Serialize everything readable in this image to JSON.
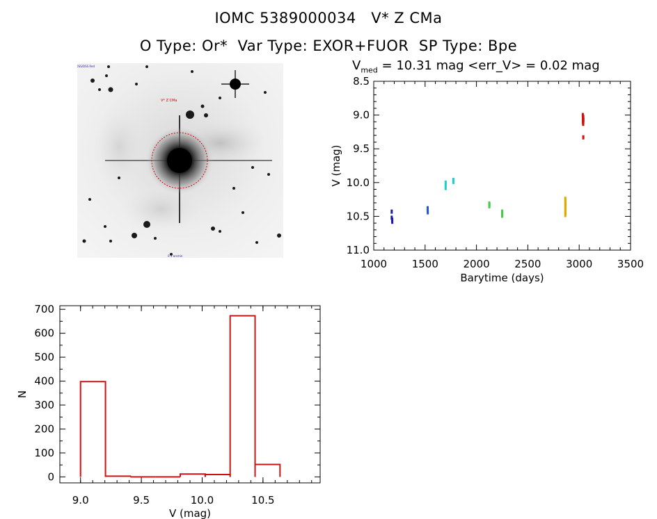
{
  "header": {
    "title_line1": "IOMC 5389000034   V* Z CMa",
    "title_line2": "O Type: Or*  Var Type: EXOR+FUOR  SP Type: Bpe"
  },
  "colors": {
    "histogram_bar": "#cc1111",
    "lightcurve_points": [
      "#1a1aaa",
      "#2255dd",
      "#22cccc",
      "#44cc44",
      "#ddaa00",
      "#cc1111"
    ],
    "stamp_circle": "#cc0000"
  },
  "lightcurve": {
    "vmed_prefix": "V",
    "vmed_sub": "med",
    "vmed_rest": " = 10.31 mag <err_V> = 0.02 mag"
  },
  "chart_data": [
    {
      "type": "scatter",
      "xlabel": "Barytime (days)",
      "ylabel": "V (mag)",
      "xlim": [
        1000,
        3500
      ],
      "ylim": [
        11.0,
        8.5
      ],
      "y_inverted": true,
      "x_ticks": [
        "1000",
        "1500",
        "2000",
        "2500",
        "3000",
        "3500"
      ],
      "y_ticks": [
        "8.5",
        "9.0",
        "9.5",
        "10.0",
        "10.5",
        "11.0"
      ],
      "series": [
        {
          "color": "#1a1aaa",
          "x": [
            1175,
            1175,
            1180,
            1180
          ],
          "y": [
            10.43,
            10.52,
            10.55,
            10.58
          ]
        },
        {
          "color": "#2255dd",
          "x": [
            1525,
            1525,
            1526
          ],
          "y": [
            10.38,
            10.41,
            10.44
          ]
        },
        {
          "color": "#22cccc",
          "x": [
            1700,
            1700,
            1700,
            1775,
            1775
          ],
          "y": [
            10.0,
            10.04,
            10.08,
            9.96,
            9.99
          ]
        },
        {
          "color": "#44cc44",
          "x": [
            2125,
            2126,
            2125,
            2250,
            2251,
            2250
          ],
          "y": [
            10.31,
            10.33,
            10.35,
            10.43,
            10.46,
            10.49
          ]
        },
        {
          "color": "#ddaa00",
          "x": [
            2865,
            2866,
            2865,
            2867,
            2865,
            2866,
            2865,
            2866,
            2865
          ],
          "y": [
            10.24,
            10.27,
            10.3,
            10.33,
            10.36,
            10.39,
            10.42,
            10.45,
            10.48
          ]
        },
        {
          "color": "#cc1111",
          "x": [
            3035,
            3036,
            3040,
            3038,
            3041,
            3036,
            3040,
            3037,
            3039,
            3040
          ],
          "y": [
            9.0,
            9.02,
            9.03,
            9.05,
            9.07,
            9.08,
            9.1,
            9.11,
            9.13,
            9.33
          ]
        }
      ]
    },
    {
      "type": "bar",
      "style": "histogram-outline",
      "xlabel": "V (mag)",
      "ylabel": "N",
      "xlim": [
        8.83,
        10.97
      ],
      "ylim": [
        -25,
        715
      ],
      "x_ticks": [
        "9.0",
        "9.5",
        "10.0",
        "10.5"
      ],
      "y_ticks": [
        "0",
        "100",
        "200",
        "300",
        "400",
        "500",
        "600",
        "700"
      ],
      "bin_width": 0.205,
      "bin_starts": [
        9.0,
        9.205,
        9.41,
        9.615,
        9.82,
        10.025,
        10.23,
        10.435
      ],
      "values": [
        398,
        3,
        0,
        0,
        12,
        10,
        673,
        52
      ]
    }
  ]
}
